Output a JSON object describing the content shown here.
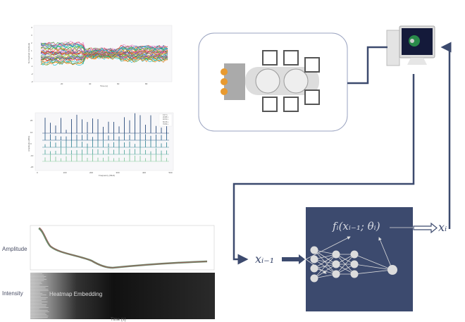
{
  "plot_top": {
    "xlabel": "Time (s)",
    "ylabel": "Normalized Amplitude",
    "xticks": [
      "20",
      "40",
      "60",
      "80"
    ],
    "yticks": [
      "4",
      "3",
      "2",
      "1",
      "0",
      "-1",
      "-2",
      "-3"
    ]
  },
  "plot_mid": {
    "xlabel": "Frequency (MHz)",
    "ylabel": "Amplitude (dBm)",
    "xticks": [
      "0",
      "100",
      "200",
      "300",
      "400",
      "500"
    ],
    "yticks": [
      "20",
      "10",
      "0",
      "-10",
      "-20"
    ],
    "legend": [
      "0.17 s",
      "20.88 s",
      "40.61 s",
      "60.33 s",
      "79.56 s"
    ]
  },
  "embedding": {
    "amplitude_label": "Amplitude",
    "intensity_label": "Intensity",
    "heatmap_label": "Heatmap Embedding",
    "xlabel": "Time (s)"
  },
  "model": {
    "function": "fᵢ(xᵢ₋₁; θᵢ)",
    "theta": "θᵢ",
    "input": "xᵢ₋₁",
    "output": "xᵢ"
  },
  "colors": {
    "line": "#3c4a6e",
    "box": "#3c4a6e",
    "node": "#dcdcdc"
  }
}
